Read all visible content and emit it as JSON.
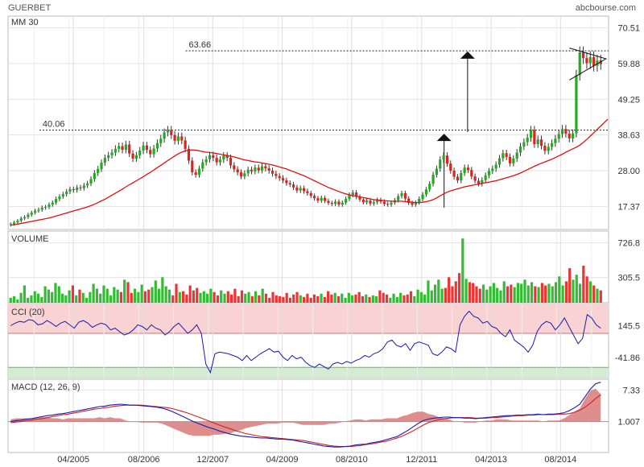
{
  "header": {
    "ticker": "GUERBET",
    "site": "abcbourse.com"
  },
  "colors": {
    "up": "#22aa22",
    "down": "#dd2222",
    "ma": "#dd1111",
    "macd": "#1a1aaa",
    "signal": "#cc2222",
    "cci": "#1a1aaa",
    "volume_up": "#33bb33",
    "volume_down": "#ee3333",
    "level": "#cc0000"
  },
  "chart_data": [
    {
      "id": "price",
      "type": "candlestick",
      "title": "MM 30",
      "y_ticks": [
        "70.51",
        "59.88",
        "49.25",
        "38.63",
        "28.00",
        "17.37"
      ],
      "ylim": [
        10.5,
        74.0
      ],
      "x_ticks": [
        "04/2005",
        "08/2006",
        "12/2007",
        "04/2009",
        "08/2010",
        "12/2011",
        "04/2013",
        "08/2014"
      ],
      "x_tick_pos": [
        2005.25,
        2006.6,
        2007.92,
        2009.25,
        2010.58,
        2011.92,
        2013.25,
        2014.58
      ],
      "xlim": [
        2004.0,
        2015.5
      ],
      "annotations": [
        {
          "label": "40.06",
          "value": 40.06,
          "from": 2004.6
        },
        {
          "label": "63.66",
          "value": 63.66,
          "from": 2007.4
        }
      ],
      "arrows": [
        {
          "x": 2012.35,
          "from": 17.0,
          "to": 39.0
        },
        {
          "x": 2012.8,
          "from": 39.5,
          "to": 63.5
        }
      ],
      "close": [
        12.1,
        12.6,
        13.1,
        13.8,
        14.2,
        14.9,
        15.5,
        16.1,
        16.4,
        17.0,
        17.2,
        17.9,
        18.5,
        19.6,
        20.3,
        21.0,
        21.8,
        22.5,
        22.2,
        23.0,
        22.8,
        23.6,
        24.2,
        25.5,
        27.3,
        28.5,
        30.4,
        31.8,
        32.6,
        33.4,
        34.5,
        35.3,
        34.2,
        35.8,
        33.1,
        31.6,
        32.6,
        34.0,
        35.5,
        34.2,
        32.9,
        34.6,
        36.2,
        37.5,
        39.4,
        40.1,
        38.6,
        36.9,
        38.2,
        37.0,
        34.5,
        31.0,
        27.5,
        26.8,
        28.6,
        30.5,
        31.4,
        32.6,
        31.8,
        30.5,
        31.3,
        32.5,
        31.8,
        29.6,
        28.4,
        27.5,
        26.3,
        27.2,
        28.3,
        27.8,
        28.9,
        28.1,
        29.3,
        28.7,
        28.0,
        27.1,
        26.4,
        25.8,
        25.1,
        24.3,
        23.9,
        23.0,
        22.1,
        22.8,
        21.9,
        21.3,
        20.5,
        19.8,
        19.1,
        19.9,
        19.0,
        18.4,
        18.1,
        18.8,
        17.9,
        18.5,
        19.6,
        20.8,
        21.5,
        20.2,
        19.4,
        18.6,
        19.1,
        18.2,
        18.6,
        19.3,
        18.8,
        18.1,
        17.9,
        18.5,
        19.2,
        20.4,
        21.3,
        19.7,
        18.4,
        17.9,
        18.5,
        19.6,
        20.9,
        22.4,
        24.1,
        26.8,
        28.6,
        31.3,
        32.5,
        30.1,
        28.0,
        26.2,
        25.1,
        27.3,
        28.9,
        28.2,
        26.3,
        25.0,
        24.1,
        25.2,
        26.6,
        27.9,
        28.6,
        29.8,
        31.7,
        33.2,
        32.1,
        30.2,
        31.6,
        33.4,
        35.2,
        36.5,
        37.8,
        40.1,
        35.9,
        37.3,
        35.4,
        33.9,
        35.1,
        36.2,
        37.5,
        38.9,
        40.4,
        39.0,
        37.6,
        39.1,
        56.4,
        63.2,
        61.5,
        60.0,
        61.8,
        59.2,
        60.8,
        59.7
      ],
      "ma30": [
        11.8,
        11.9,
        12.1,
        12.3,
        12.5,
        12.7,
        12.9,
        13.1,
        13.3,
        13.5,
        13.7,
        13.9,
        14.2,
        14.5,
        14.8,
        15.1,
        15.4,
        15.7,
        16.0,
        16.3,
        16.6,
        16.9,
        17.2,
        17.6,
        18.0,
        18.5,
        19.0,
        19.5,
        20.1,
        20.7,
        21.3,
        21.9,
        22.5,
        23.2,
        23.8,
        24.4,
        25.0,
        25.6,
        26.2,
        26.9,
        27.5,
        28.2,
        28.9,
        29.6,
        30.3,
        31.0,
        31.7,
        32.4,
        33.0,
        33.5,
        33.9,
        34.1,
        34.2,
        34.1,
        33.9,
        33.7,
        33.5,
        33.4,
        33.3,
        33.1,
        32.9,
        32.7,
        32.5,
        32.3,
        32.1,
        31.8,
        31.5,
        31.2,
        31.0,
        30.8,
        30.6,
        30.5,
        30.3,
        30.1,
        29.9,
        29.7,
        29.4,
        29.1,
        28.8,
        28.5,
        28.1,
        27.7,
        27.3,
        26.9,
        26.5,
        26.0,
        25.5,
        25.0,
        24.5,
        24.0,
        23.5,
        23.0,
        22.6,
        22.2,
        21.8,
        21.4,
        21.1,
        20.8,
        20.6,
        20.4,
        20.2,
        20.0,
        19.8,
        19.6,
        19.4,
        19.3,
        19.2,
        19.1,
        19.0,
        18.9,
        18.9,
        18.9,
        18.9,
        18.8,
        18.7,
        18.6,
        18.5,
        18.5,
        18.6,
        18.8,
        19.0,
        19.4,
        19.9,
        20.5,
        21.1,
        21.6,
        22.0,
        22.3,
        22.6,
        22.9,
        23.2,
        23.4,
        23.6,
        23.8,
        24.0,
        24.2,
        24.4,
        24.6,
        24.8,
        25.0,
        25.3,
        25.6,
        25.9,
        26.2,
        26.5,
        26.9,
        27.3,
        27.8,
        28.3,
        28.8,
        29.3,
        29.8,
        30.2,
        30.6,
        31.0,
        31.4,
        31.9,
        32.4,
        32.9,
        33.5,
        34.0,
        34.5,
        35.0,
        35.6,
        36.4,
        37.3,
        38.3,
        39.3,
        40.3,
        41.3,
        42.3,
        43.3
      ]
    },
    {
      "id": "volume",
      "type": "bar",
      "title": "VOLUME",
      "y_ticks": [
        "726.8",
        "305.5"
      ],
      "ylim": [
        0,
        870
      ],
      "values": [
        60,
        80,
        40,
        120,
        210,
        60,
        90,
        140,
        110,
        70,
        200,
        160,
        130,
        240,
        200,
        110,
        90,
        150,
        210,
        90,
        160,
        120,
        60,
        130,
        230,
        170,
        110,
        210,
        170,
        90,
        190,
        160,
        130,
        280,
        250,
        120,
        170,
        130,
        220,
        140,
        160,
        190,
        270,
        170,
        310,
        200,
        160,
        90,
        230,
        130,
        140,
        100,
        210,
        150,
        180,
        120,
        140,
        110,
        170,
        130,
        90,
        150,
        110,
        140,
        100,
        170,
        80,
        150,
        110,
        130,
        80,
        140,
        90,
        170,
        110,
        60,
        130,
        90,
        80,
        70,
        120,
        60,
        100,
        130,
        90,
        70,
        110,
        60,
        100,
        80,
        110,
        70,
        140,
        100,
        120,
        80,
        110,
        60,
        120,
        90,
        100,
        130,
        80,
        100,
        70,
        90,
        80,
        150,
        120,
        100,
        60,
        110,
        70,
        120,
        90,
        100,
        140,
        80,
        160,
        130,
        100,
        270,
        150,
        220,
        280,
        170,
        180,
        310,
        200,
        260,
        360,
        780,
        290,
        250,
        240,
        200,
        170,
        220,
        160,
        200,
        240,
        180,
        150,
        260,
        200,
        220,
        190,
        240,
        230,
        280,
        210,
        250,
        200,
        190,
        240,
        210,
        230,
        200,
        250,
        320,
        210,
        260,
        420,
        280,
        340,
        230,
        450,
        320,
        260,
        210,
        170,
        150
      ]
    },
    {
      "id": "cci",
      "type": "line",
      "title": "CCI (20)",
      "y_ticks": [
        "145.5",
        "-41.86"
      ],
      "ylim": [
        -160,
        270
      ],
      "bands": [
        100,
        -100
      ],
      "values": [
        145,
        160,
        170,
        165,
        180,
        175,
        150,
        155,
        175,
        160,
        140,
        160,
        170,
        150,
        130,
        165,
        175,
        160,
        135,
        150,
        160,
        150,
        120,
        130,
        110,
        90,
        100,
        120,
        150,
        140,
        120,
        150,
        130,
        120,
        90,
        110,
        140,
        160,
        130,
        100,
        120,
        150,
        100,
        -80,
        -130,
        -20,
        -10,
        -15,
        -20,
        -30,
        -40,
        -60,
        -30,
        -60,
        -40,
        -20,
        -5,
        10,
        -10,
        -5,
        -40,
        -60,
        -30,
        -50,
        -40,
        -70,
        -90,
        -100,
        -80,
        -95,
        -110,
        -80,
        -70,
        -80,
        -65,
        -75,
        -60,
        -50,
        -30,
        -40,
        -20,
        -10,
        10,
        50,
        60,
        30,
        20,
        40,
        0,
        40,
        50,
        40,
        30,
        -20,
        -30,
        -10,
        20,
        10,
        -10,
        150,
        200,
        230,
        200,
        190,
        160,
        170,
        140,
        130,
        100,
        80,
        120,
        60,
        40,
        20,
        -10,
        30,
        110,
        150,
        170,
        160,
        120,
        150,
        190,
        140,
        90,
        40,
        70,
        210,
        190,
        150,
        130
      ]
    },
    {
      "id": "macd",
      "type": "line",
      "title": "MACD (12, 26, 9)",
      "y_ticks": [
        "7.33",
        "1.007"
      ],
      "ylim": [
        -5.2,
        9.5
      ],
      "macd": [
        1.0,
        1.2,
        1.3,
        1.5,
        1.6,
        1.8,
        2.0,
        2.2,
        2.3,
        2.5,
        2.6,
        2.8,
        3.0,
        3.2,
        3.4,
        3.6,
        3.8,
        4.0,
        4.1,
        4.3,
        4.4,
        4.5,
        4.4,
        4.3,
        4.3,
        4.2,
        4.1,
        4.0,
        3.9,
        3.7,
        3.4,
        3.0,
        2.5,
        2.0,
        1.5,
        1.0,
        0.6,
        0.2,
        -0.2,
        -0.5,
        -0.9,
        -1.2,
        -1.5,
        -1.7,
        -1.9,
        -2.0,
        -2.1,
        -2.2,
        -2.3,
        -2.3,
        -2.4,
        -2.5,
        -2.5,
        -2.6,
        -2.7,
        -2.9,
        -3.1,
        -3.3,
        -3.5,
        -3.7,
        -3.9,
        -4.0,
        -4.1,
        -4.1,
        -4.0,
        -3.9,
        -3.7,
        -3.6,
        -3.5,
        -3.3,
        -3.1,
        -2.9,
        -2.6,
        -2.3,
        -2.0,
        -1.4,
        -0.8,
        -0.1,
        0.6,
        1.2,
        1.5,
        1.7,
        1.8,
        1.9,
        1.9,
        1.8,
        1.8,
        1.7,
        1.7,
        1.6,
        1.7,
        1.8,
        1.9,
        2.0,
        2.1,
        2.2,
        2.2,
        2.3,
        2.3,
        2.4,
        2.4,
        2.5,
        2.4,
        2.5,
        2.5,
        2.6,
        2.8,
        3.2,
        3.8,
        4.5,
        6.0,
        7.5,
        8.6,
        8.9
      ],
      "signal": [
        0.8,
        0.9,
        1.0,
        1.2,
        1.3,
        1.5,
        1.6,
        1.8,
        2.0,
        2.2,
        2.4,
        2.5,
        2.7,
        2.9,
        3.1,
        3.3,
        3.5,
        3.6,
        3.8,
        3.9,
        4.1,
        4.2,
        4.3,
        4.3,
        4.3,
        4.3,
        4.2,
        4.1,
        4.0,
        3.9,
        3.8,
        3.6,
        3.3,
        3.0,
        2.7,
        2.3,
        1.9,
        1.5,
        1.1,
        0.7,
        0.3,
        -0.1,
        -0.4,
        -0.8,
        -1.1,
        -1.4,
        -1.6,
        -1.8,
        -2.0,
        -2.1,
        -2.2,
        -2.3,
        -2.4,
        -2.5,
        -2.6,
        -2.7,
        -2.8,
        -3.0,
        -3.2,
        -3.4,
        -3.6,
        -3.8,
        -3.9,
        -4.0,
        -4.0,
        -4.0,
        -3.9,
        -3.8,
        -3.6,
        -3.5,
        -3.3,
        -3.1,
        -2.9,
        -2.6,
        -2.3,
        -1.9,
        -1.4,
        -0.9,
        -0.3,
        0.3,
        0.8,
        1.1,
        1.4,
        1.6,
        1.7,
        1.8,
        1.8,
        1.8,
        1.8,
        1.7,
        1.7,
        1.7,
        1.8,
        1.8,
        1.9,
        2.0,
        2.1,
        2.2,
        2.2,
        2.3,
        2.3,
        2.4,
        2.4,
        2.4,
        2.4,
        2.5,
        2.5,
        2.6,
        2.9,
        3.3,
        3.9,
        4.7,
        5.6,
        6.4
      ]
    }
  ]
}
